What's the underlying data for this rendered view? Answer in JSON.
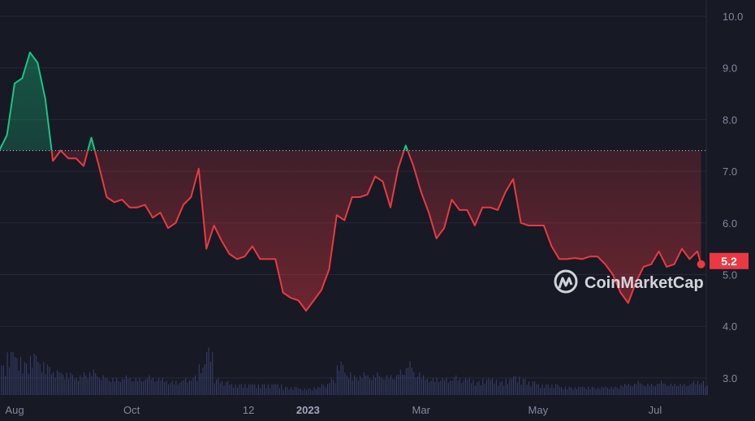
{
  "chart_data": {
    "type": "line",
    "title": "",
    "xlabel": "",
    "ylabel": "",
    "ylim": [
      2.75,
      10.3
    ],
    "y_ticks": [
      "3.0",
      "4.0",
      "5.0",
      "6.0",
      "7.0",
      "8.0",
      "9.0",
      "10.0"
    ],
    "x_ticks": [
      {
        "label": "Aug",
        "date": "2022-08-01",
        "bold": false
      },
      {
        "label": "Oct",
        "date": "2022-10-01",
        "bold": false
      },
      {
        "label": "12",
        "date": "2022-12-01",
        "bold": false
      },
      {
        "label": "2023",
        "date": "2023-01-01",
        "bold": true
      },
      {
        "label": "Mar",
        "date": "2023-03-01",
        "bold": false
      },
      {
        "label": "May",
        "date": "2023-05-01",
        "bold": false
      },
      {
        "label": "Jul",
        "date": "2023-07-01",
        "bold": false
      }
    ],
    "grid": true,
    "baseline": 7.4,
    "current_price_label": "5.2",
    "colors": {
      "up": "#16c784",
      "down": "#ea3943",
      "background": "#171924",
      "grid": "#262a38",
      "volume": "#3a4170"
    },
    "watermark": "CoinMarketCap",
    "series": [
      {
        "x": [
          "2022-07-24",
          "2022-07-28",
          "2022-08-01",
          "2022-08-05",
          "2022-08-09",
          "2022-08-13",
          "2022-08-17",
          "2022-08-21",
          "2022-08-25",
          "2022-08-29",
          "2022-09-02",
          "2022-09-06",
          "2022-09-10",
          "2022-09-14",
          "2022-09-18",
          "2022-09-22",
          "2022-09-26",
          "2022-09-30",
          "2022-10-04",
          "2022-10-08",
          "2022-10-12",
          "2022-10-16",
          "2022-10-20",
          "2022-10-24",
          "2022-10-28",
          "2022-11-01",
          "2022-11-05",
          "2022-11-09",
          "2022-11-13",
          "2022-11-17",
          "2022-11-21",
          "2022-11-25",
          "2022-11-29",
          "2022-12-03",
          "2022-12-07",
          "2022-12-11",
          "2022-12-15",
          "2022-12-19",
          "2022-12-23",
          "2022-12-27",
          "2022-12-31",
          "2023-01-04",
          "2023-01-08",
          "2023-01-12",
          "2023-01-16",
          "2023-01-20",
          "2023-01-24",
          "2023-01-28",
          "2023-02-01",
          "2023-02-05",
          "2023-02-09",
          "2023-02-13",
          "2023-02-17",
          "2023-02-21",
          "2023-02-25",
          "2023-03-01",
          "2023-03-05",
          "2023-03-09",
          "2023-03-13",
          "2023-03-17",
          "2023-03-21",
          "2023-03-25",
          "2023-03-29",
          "2023-04-02",
          "2023-04-06",
          "2023-04-10",
          "2023-04-14",
          "2023-04-18",
          "2023-04-22",
          "2023-04-26",
          "2023-04-30",
          "2023-05-04",
          "2023-05-08",
          "2023-05-12",
          "2023-05-16",
          "2023-05-20",
          "2023-05-24",
          "2023-05-28",
          "2023-06-01",
          "2023-06-05",
          "2023-06-09",
          "2023-06-13",
          "2023-06-17",
          "2023-06-21",
          "2023-06-25",
          "2023-06-29",
          "2023-07-03",
          "2023-07-07",
          "2023-07-11",
          "2023-07-15",
          "2023-07-19",
          "2023-07-23",
          "2023-07-25"
        ],
        "values": [
          7.4,
          7.7,
          8.7,
          8.8,
          9.3,
          9.1,
          8.4,
          7.2,
          7.4,
          7.25,
          7.25,
          7.1,
          7.65,
          7.1,
          6.5,
          6.4,
          6.45,
          6.3,
          6.3,
          6.35,
          6.1,
          6.2,
          5.9,
          6.0,
          6.35,
          6.5,
          7.05,
          5.5,
          5.95,
          5.65,
          5.4,
          5.3,
          5.35,
          5.55,
          5.3,
          5.3,
          5.3,
          4.65,
          4.55,
          4.5,
          4.3,
          4.5,
          4.7,
          5.1,
          6.15,
          6.05,
          6.5,
          6.5,
          6.55,
          6.9,
          6.8,
          6.3,
          7.05,
          7.5,
          7.1,
          6.6,
          6.2,
          5.7,
          5.9,
          6.45,
          6.25,
          6.25,
          5.95,
          6.3,
          6.3,
          6.25,
          6.6,
          6.85,
          6.0,
          5.95,
          5.95,
          5.95,
          5.55,
          5.3,
          5.3,
          5.32,
          5.3,
          5.35,
          5.35,
          5.2,
          5.0,
          4.65,
          4.45,
          4.85,
          5.15,
          5.2,
          5.45,
          5.15,
          5.2,
          5.5,
          5.3,
          5.45,
          5.2
        ],
        "volume_relative": [
          0.55,
          0.8,
          0.7,
          0.6,
          0.75,
          0.6,
          0.55,
          0.45,
          0.4,
          0.4,
          0.35,
          0.4,
          0.45,
          0.35,
          0.3,
          0.3,
          0.35,
          0.3,
          0.3,
          0.35,
          0.3,
          0.3,
          0.25,
          0.25,
          0.3,
          0.35,
          0.55,
          0.85,
          0.3,
          0.25,
          0.2,
          0.2,
          0.2,
          0.2,
          0.2,
          0.2,
          0.2,
          0.15,
          0.15,
          0.12,
          0.12,
          0.15,
          0.2,
          0.3,
          0.6,
          0.4,
          0.35,
          0.4,
          0.35,
          0.4,
          0.35,
          0.35,
          0.45,
          0.6,
          0.4,
          0.35,
          0.3,
          0.3,
          0.3,
          0.35,
          0.3,
          0.3,
          0.25,
          0.3,
          0.3,
          0.25,
          0.3,
          0.35,
          0.3,
          0.25,
          0.2,
          0.2,
          0.2,
          0.15,
          0.15,
          0.15,
          0.15,
          0.15,
          0.15,
          0.15,
          0.15,
          0.2,
          0.2,
          0.25,
          0.2,
          0.2,
          0.25,
          0.2,
          0.2,
          0.2,
          0.25,
          0.25,
          0.2
        ]
      }
    ]
  }
}
